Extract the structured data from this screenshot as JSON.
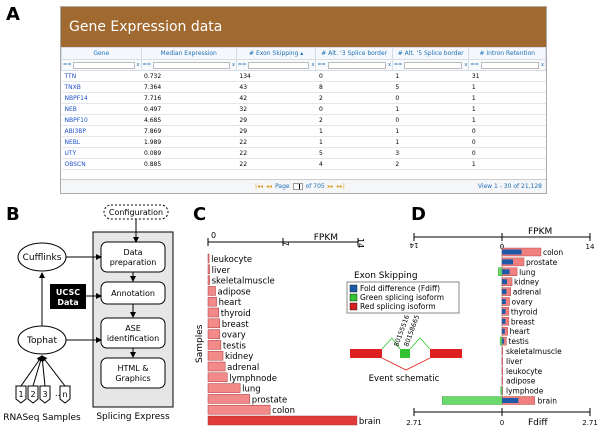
{
  "letters": {
    "a": "A",
    "b": "B",
    "c": "C",
    "d": "D"
  },
  "panel_a": {
    "title": "Gene Expression data",
    "columns": [
      "Gene",
      "Median Expression",
      "# Exon Skipping",
      "# Alt. '3 Splice border",
      "# Alt. '5 Splice border",
      "# Intron Retention"
    ],
    "sort_arrow": "▴",
    "filter_op": "==",
    "filter_clear": "x",
    "rows": [
      [
        "TTN",
        "0.732",
        "134",
        "0",
        "1",
        "31"
      ],
      [
        "TNXB",
        "7.364",
        "43",
        "8",
        "5",
        "1"
      ],
      [
        "NBPF14",
        "7.716",
        "42",
        "2",
        "0",
        "1"
      ],
      [
        "NEB",
        "0.497",
        "32",
        "0",
        "1",
        "1"
      ],
      [
        "NBPF10",
        "4.685",
        "29",
        "2",
        "0",
        "1"
      ],
      [
        "ABI3BP",
        "7.869",
        "29",
        "1",
        "1",
        "0"
      ],
      [
        "NEBL",
        "1.989",
        "22",
        "1",
        "1",
        "0"
      ],
      [
        "UTY",
        "0.089",
        "22",
        "5",
        "3",
        "0"
      ],
      [
        "OBSCN",
        "0.885",
        "22",
        "4",
        "2",
        "1"
      ]
    ],
    "pager": {
      "page_label": "Page",
      "page_value": "1",
      "of_label": "of 705",
      "view_label": "View 1 - 30 of 21,128"
    }
  },
  "panel_b": {
    "configuration": "Configuration",
    "cufflinks": "Cufflinks",
    "tophat": "Tophat",
    "ucsc_line1": "UCSC",
    "ucsc_line2": "Data",
    "steps": [
      [
        "Data",
        "preparation"
      ],
      [
        "Annotation"
      ],
      [
        "ASE",
        "identification"
      ],
      [
        "HTML &",
        "Graphics"
      ]
    ],
    "splicing_express": "Splicing Express",
    "samples": [
      "1",
      "2",
      "3",
      "…",
      "n"
    ],
    "rnaseq_label": "RNASeq Samples"
  },
  "panel_c": {
    "axis_title": "FPKM",
    "axis_ticks": [
      "0",
      "7",
      "14"
    ],
    "ylabel": "Samples",
    "tissues": [
      "leukocyte",
      "liver",
      "skeletalmuscle",
      "adipose",
      "heart",
      "thyroid",
      "breast",
      "ovary",
      "testis",
      "kidney",
      "adrenal",
      "lymphnode",
      "lung",
      "prostate",
      "colon",
      "brain"
    ],
    "legend_title": "Exon Skipping",
    "legend": [
      {
        "label": "Fold difference (Fdiff)",
        "color": "#1f5aa8"
      },
      {
        "label": "Green splicing isoform",
        "color": "#33c233"
      },
      {
        "label": "Red splicing isoform",
        "color": "#d42020"
      }
    ],
    "schematic_label": "Event schematic",
    "coord1": "80155516",
    "coord2": "80158665"
  },
  "panel_d": {
    "top_axis_title": "FPKM",
    "top_ticks": [
      "14",
      "0",
      "14"
    ],
    "bottom_axis_title": "Fdiff",
    "bottom_ticks": [
      "2.71",
      "0",
      "2.71"
    ],
    "tissues": [
      "colon",
      "prostate",
      "lung",
      "kidney",
      "adrenal",
      "ovary",
      "thyroid",
      "breast",
      "heart",
      "testis",
      "skeletalmuscle",
      "liver",
      "leukocyte",
      "adipose",
      "lymphode",
      "brain"
    ]
  },
  "chart_data": [
    {
      "type": "bar",
      "title": "",
      "xlabel": "FPKM",
      "ylabel": "Samples",
      "xlim": [
        0,
        14
      ],
      "categories": [
        "leukocyte",
        "liver",
        "skeletalmuscle",
        "adipose",
        "heart",
        "thyroid",
        "breast",
        "ovary",
        "testis",
        "kidney",
        "adrenal",
        "lymphnode",
        "lung",
        "prostate",
        "colon",
        "brain"
      ],
      "values": [
        0.1,
        0.15,
        0.15,
        0.7,
        0.8,
        1.0,
        1.1,
        1.1,
        1.2,
        1.4,
        1.6,
        1.8,
        3.0,
        3.9,
        5.8,
        13.9
      ]
    },
    {
      "type": "bar",
      "title": "",
      "xlabel": "FPKM",
      "xlim": [
        -14,
        14
      ],
      "categories": [
        "colon",
        "prostate",
        "lung",
        "kidney",
        "adrenal",
        "ovary",
        "thyroid",
        "breast",
        "heart",
        "testis",
        "skeletalmuscle",
        "liver",
        "leukocyte",
        "adipose",
        "lymphode",
        "brain"
      ],
      "series": [
        {
          "values": [
            6.2,
            3.5,
            2.4,
            1.6,
            1.4,
            1.2,
            1.1,
            1.1,
            0.9,
            0.7,
            0.1,
            0.1,
            0.1,
            0.1,
            0.1,
            5.2
          ]
        },
        {
          "values": [
            0.0,
            0.0,
            -0.6,
            0.0,
            0.0,
            0.0,
            0.0,
            0.0,
            0.0,
            -0.3,
            0.0,
            0.0,
            0.0,
            0.0,
            -0.2,
            -9.5
          ]
        }
      ]
    }
  ]
}
